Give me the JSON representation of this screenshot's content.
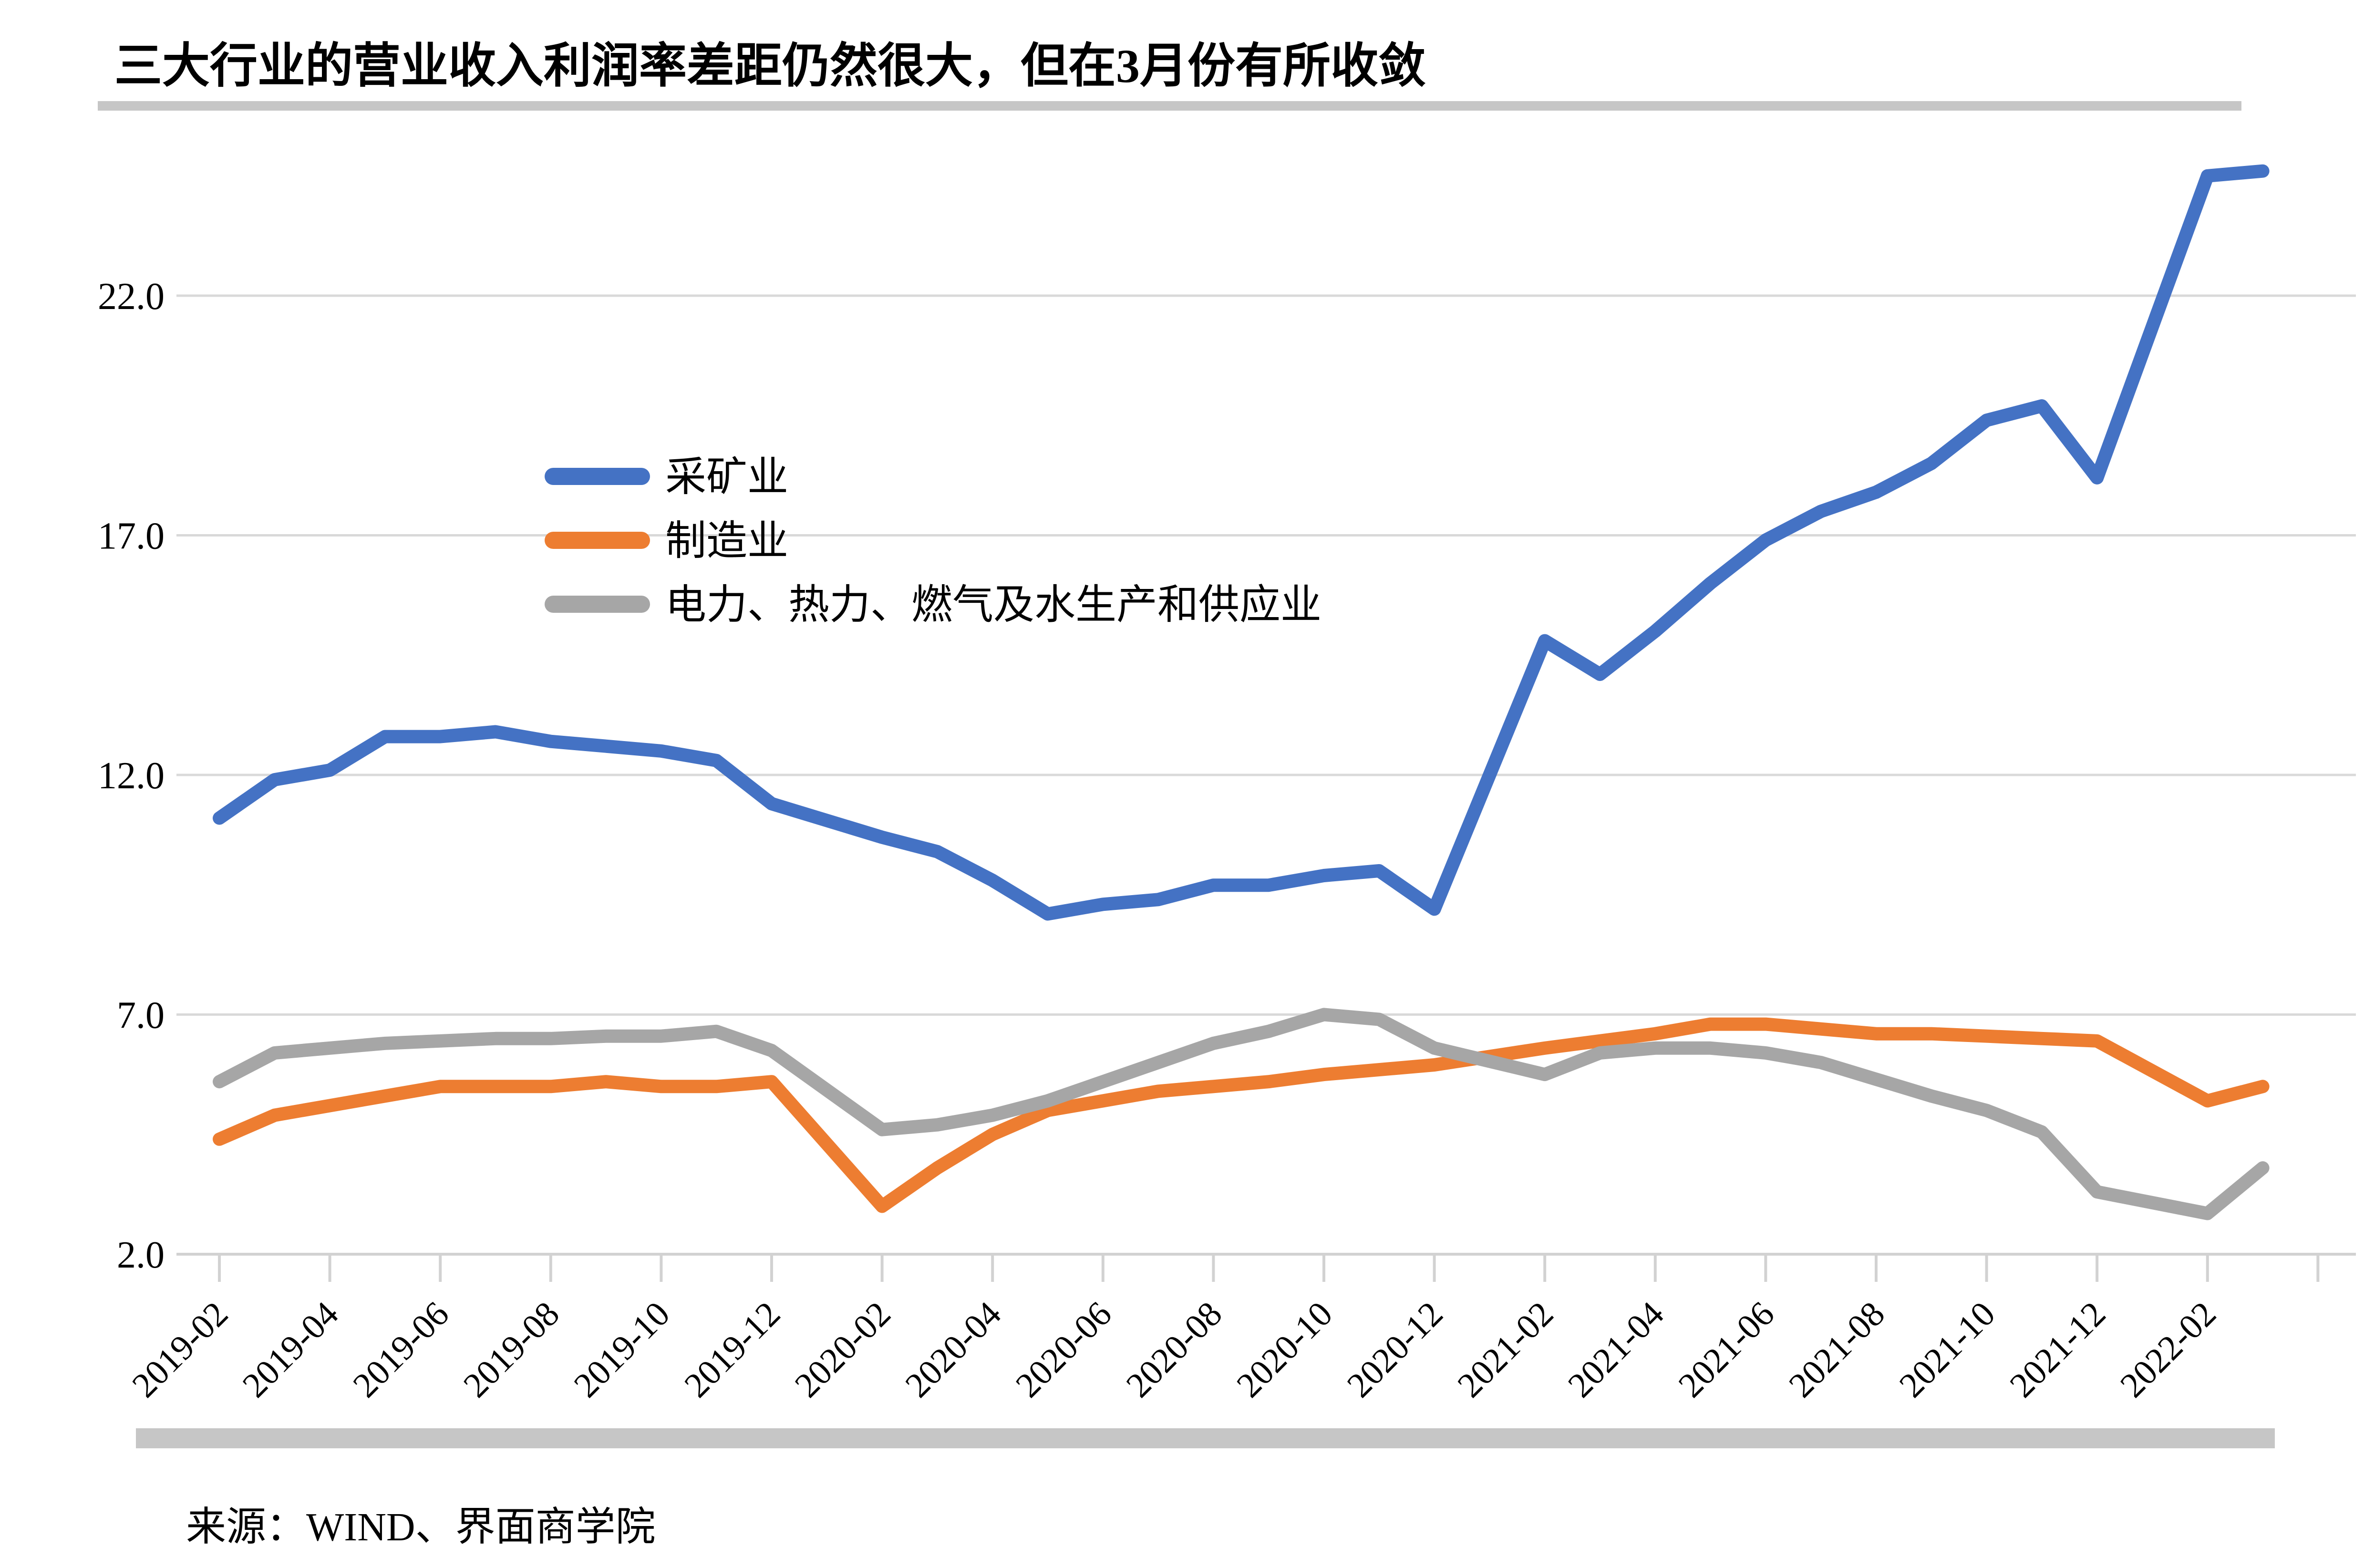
{
  "title": "三大行业的营业收入利润率差距仍然很大，但在3月份有所收敛",
  "source": "来源：WIND、界面商学院",
  "colors": {
    "mining": "#4472C4",
    "manufacturing": "#ED7D31",
    "utilities": "#A6A6A6",
    "gridline": "#D9D9D9",
    "axis": "#D2D2D2",
    "rule": "#C6C6C6",
    "text": "#000000",
    "background": "#FFFFFF"
  },
  "chart_data": {
    "type": "line",
    "title": "三大行业的营业收入利润率差距仍然很大，但在3月份有所收敛",
    "xlabel": "",
    "ylabel": "",
    "grid": true,
    "legend_position": "upper-left-inside",
    "ylim": [
      2.0,
      25.6
    ],
    "yticks": [
      {
        "label": "22.0",
        "value": 22.0
      },
      {
        "label": "17.0",
        "value": 17.0
      },
      {
        "label": "12.0",
        "value": 12.0
      },
      {
        "label": "7.0",
        "value": 7.0
      },
      {
        "label": "2.0",
        "value": 2.0
      }
    ],
    "x_tick_labels": [
      "2019-02",
      "2019-04",
      "2019-06",
      "2019-08",
      "2019-10",
      "2019-12",
      "2020-02",
      "2020-04",
      "2020-06",
      "2020-08",
      "2020-10",
      "2020-12",
      "2021-02",
      "2021-04",
      "2021-06",
      "2021-08",
      "2021-10",
      "2021-12",
      "2022-02"
    ],
    "categories": [
      "2019-02",
      "2019-03",
      "2019-04",
      "2019-05",
      "2019-06",
      "2019-07",
      "2019-08",
      "2019-09",
      "2019-10",
      "2019-11",
      "2019-12",
      "2020-02",
      "2020-03",
      "2020-04",
      "2020-05",
      "2020-06",
      "2020-07",
      "2020-08",
      "2020-09",
      "2020-10",
      "2020-11",
      "2020-12",
      "2021-02",
      "2021-03",
      "2021-04",
      "2021-05",
      "2021-06",
      "2021-07",
      "2021-08",
      "2021-09",
      "2021-10",
      "2021-11",
      "2021-12",
      "2022-02",
      "2022-03"
    ],
    "series": [
      {
        "name": "采矿业",
        "color": "#4472C4",
        "values": [
          11.1,
          11.9,
          12.1,
          12.8,
          12.8,
          12.9,
          12.7,
          12.6,
          12.5,
          12.3,
          11.4,
          10.7,
          10.4,
          9.8,
          9.1,
          9.3,
          9.4,
          9.7,
          9.7,
          9.9,
          10.0,
          9.2,
          14.8,
          14.1,
          15.0,
          16.0,
          16.9,
          17.5,
          17.9,
          18.5,
          19.4,
          19.7,
          18.2,
          24.5,
          24.6
        ]
      },
      {
        "name": "制造业",
        "color": "#ED7D31",
        "values": [
          4.4,
          4.9,
          5.1,
          5.3,
          5.5,
          5.5,
          5.5,
          5.6,
          5.5,
          5.5,
          5.6,
          3.0,
          3.8,
          4.5,
          5.0,
          5.2,
          5.4,
          5.5,
          5.6,
          5.75,
          5.85,
          5.95,
          6.3,
          6.45,
          6.6,
          6.8,
          6.8,
          6.7,
          6.6,
          6.6,
          6.55,
          6.5,
          6.45,
          5.2,
          5.5
        ]
      },
      {
        "name": "电力、热力、燃气及水生产和供应业",
        "color": "#A6A6A6",
        "values": [
          5.6,
          6.2,
          6.3,
          6.4,
          6.45,
          6.5,
          6.5,
          6.55,
          6.55,
          6.65,
          6.25,
          4.6,
          4.7,
          4.9,
          5.2,
          5.6,
          6.0,
          6.4,
          6.65,
          7.0,
          6.9,
          6.3,
          5.75,
          6.2,
          6.3,
          6.3,
          6.2,
          6.0,
          5.65,
          5.3,
          5.0,
          4.55,
          3.3,
          2.85,
          3.8
        ]
      }
    ]
  }
}
